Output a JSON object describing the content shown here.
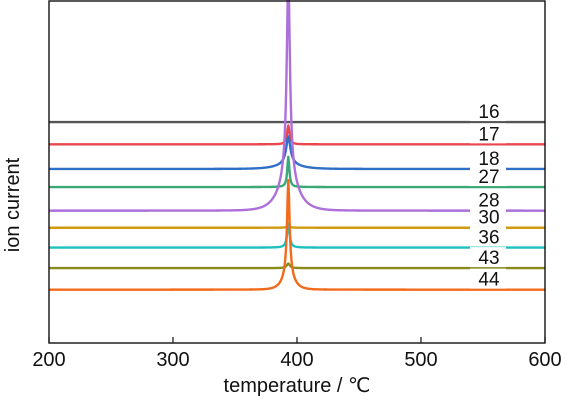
{
  "chart_data": {
    "type": "line",
    "title": "",
    "xlabel": "temperature / ℃",
    "ylabel": "ion current",
    "xlim": [
      200,
      600
    ],
    "xticks": [
      200,
      300,
      400,
      500,
      600
    ],
    "yticks": [],
    "grid": false,
    "legend": "inline labels at right end of each trace",
    "peak_temperature": 393,
    "series": [
      {
        "name": "16",
        "color": "#555555",
        "baseline": 0.646,
        "peak": 0.0,
        "base_width": 0,
        "sharp_width": 0
      },
      {
        "name": "17",
        "color": "#e8474f",
        "baseline": 0.581,
        "peak": 0.055,
        "base_width": 1.6,
        "sharp_width": 1.2
      },
      {
        "name": "18",
        "color": "#2f6fc8",
        "baseline": 0.509,
        "peak": 0.095,
        "base_width": 9,
        "sharp_width": 2
      },
      {
        "name": "27",
        "color": "#3aa877",
        "baseline": 0.456,
        "peak": 0.118,
        "base_width": 0,
        "sharp_width": 1.0
      },
      {
        "name": "28",
        "color": "#ad6fd9",
        "baseline": 0.387,
        "peak": 0.685,
        "base_width": 7,
        "sharp_width": 1.5
      },
      {
        "name": "30",
        "color": "#cf9a0f",
        "baseline": 0.337,
        "peak": 0.005,
        "base_width": 0,
        "sharp_width": 2
      },
      {
        "name": "36",
        "color": "#1fbfbf",
        "baseline": 0.279,
        "peak": 0.094,
        "base_width": 0,
        "sharp_width": 1.2
      },
      {
        "name": "43",
        "color": "#8b8b1c",
        "baseline": 0.219,
        "peak": 0.018,
        "base_width": 0,
        "sharp_width": 1.5
      },
      {
        "name": "44",
        "color": "#f26a1b",
        "baseline": 0.156,
        "peak": 0.32,
        "base_width": 4,
        "sharp_width": 1.2
      }
    ]
  }
}
